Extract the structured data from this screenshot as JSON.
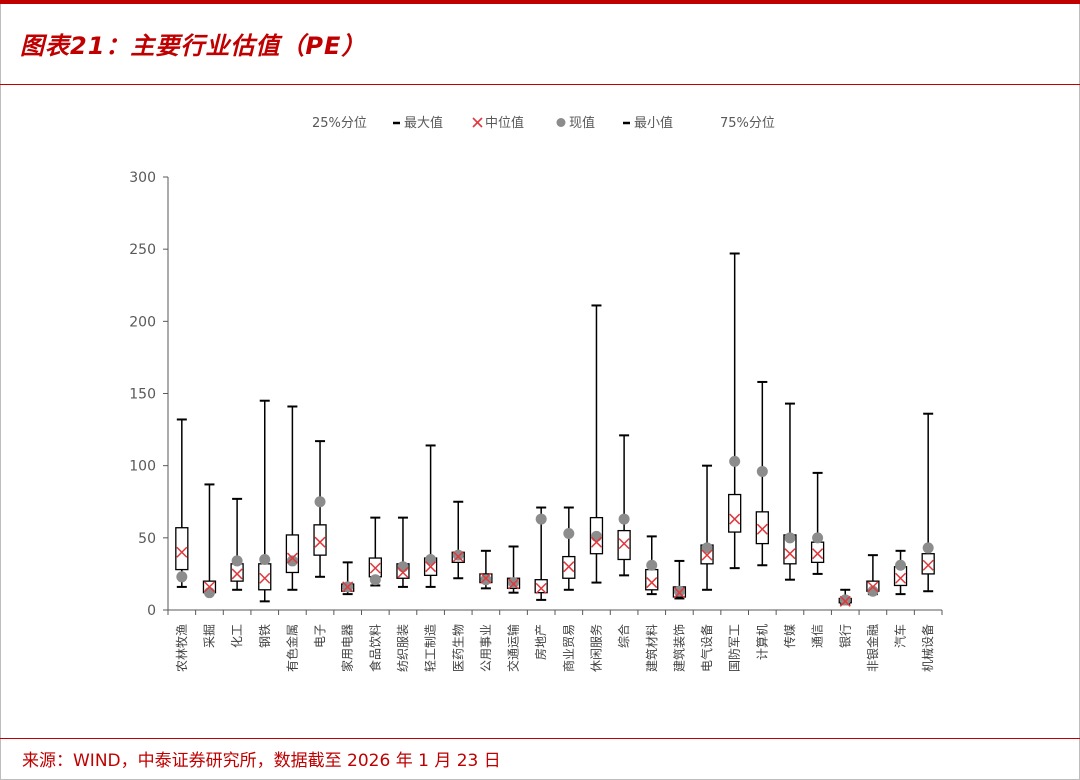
{
  "page": {
    "title": "图表21：主要行业估值（PE）",
    "source": "来源：WIND，中泰证券研究所，数据截至 2026 年 1 月 23 日"
  },
  "colors": {
    "accent": "#c00000",
    "box": "#000000",
    "median": "#e0383c",
    "current": "#8c8c8c",
    "text": "#595959"
  },
  "chart_data": {
    "type": "box",
    "title": "",
    "xlabel": "",
    "ylabel": "",
    "ylim": [
      0,
      300
    ],
    "yticks": [
      0,
      50,
      100,
      150,
      200,
      250,
      300
    ],
    "legend": {
      "position": "top",
      "items": [
        {
          "label": "25%分位",
          "symbol": "none"
        },
        {
          "label": "最大值",
          "symbol": "dash"
        },
        {
          "label": "中位值",
          "symbol": "x"
        },
        {
          "label": "现值",
          "symbol": "dot"
        },
        {
          "label": "最小值",
          "symbol": "dash"
        },
        {
          "label": "75%分位",
          "symbol": "none"
        }
      ]
    },
    "categories": [
      "农林牧渔",
      "采掘",
      "化工",
      "钢铁",
      "有色金属",
      "电子",
      "家用电器",
      "食品饮料",
      "纺织服装",
      "轻工制造",
      "医药生物",
      "公用事业",
      "交通运输",
      "房地产",
      "商业贸易",
      "休闲服务",
      "综合",
      "建筑材料",
      "建筑装饰",
      "电气设备",
      "国防军工",
      "计算机",
      "传媒",
      "通信",
      "银行",
      "非银金融",
      "汽车",
      "机械设备"
    ],
    "series": [
      {
        "name": "最大值",
        "values": [
          132,
          87,
          77,
          145,
          141,
          117,
          33,
          64,
          64,
          114,
          75,
          41,
          44,
          71,
          71,
          211,
          121,
          51,
          34,
          100,
          247,
          158,
          143,
          95,
          14,
          38,
          41,
          136
        ]
      },
      {
        "name": "75%分位",
        "values": [
          57,
          20,
          32,
          32,
          52,
          59,
          18,
          36,
          32,
          36,
          40,
          25,
          22,
          21,
          37,
          64,
          55,
          28,
          16,
          45,
          80,
          68,
          52,
          47,
          8,
          20,
          30,
          39
        ]
      },
      {
        "name": "中位值",
        "values": [
          40,
          16,
          25,
          22,
          36,
          47,
          16,
          29,
          26,
          30,
          37,
          22,
          18,
          15,
          30,
          47,
          46,
          19,
          12,
          38,
          63,
          56,
          39,
          39,
          6,
          16,
          22,
          31
        ]
      },
      {
        "name": "25%分位",
        "values": [
          28,
          12,
          20,
          14,
          26,
          38,
          13,
          23,
          22,
          24,
          33,
          19,
          15,
          12,
          22,
          39,
          35,
          14,
          9,
          32,
          54,
          46,
          32,
          33,
          5,
          13,
          17,
          25
        ]
      },
      {
        "name": "最小值",
        "values": [
          16,
          11,
          14,
          6,
          14,
          23,
          11,
          17,
          16,
          16,
          22,
          15,
          12,
          7,
          14,
          19,
          24,
          11,
          8,
          14,
          29,
          31,
          21,
          25,
          4,
          11,
          11,
          13
        ]
      },
      {
        "name": "现值",
        "values": [
          23,
          12,
          34,
          35,
          34,
          75,
          16,
          21,
          30,
          35,
          38,
          21,
          19,
          63,
          53,
          51,
          63,
          31,
          13,
          43,
          103,
          96,
          50,
          50,
          7,
          13,
          31,
          43
        ]
      }
    ]
  }
}
